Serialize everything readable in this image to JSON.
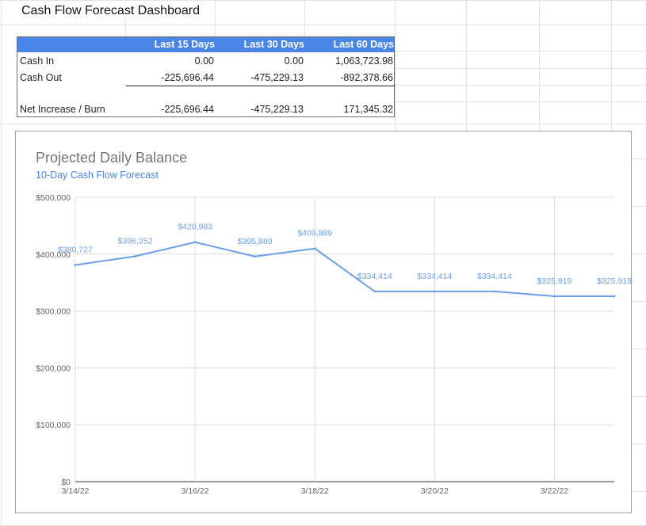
{
  "sheet": {
    "title": "Cash Flow Forecast Dashboard"
  },
  "summary_table": {
    "headers": [
      "",
      "Last 15 Days",
      "Last 30 Days",
      "Last 60 Days"
    ],
    "rows": [
      {
        "label": "Cash In",
        "values": [
          "0.00",
          "0.00",
          "1,063,723.98"
        ]
      },
      {
        "label": "Cash Out",
        "values": [
          "-225,696.44",
          "-475,229.13",
          "-892,378.66"
        ]
      },
      {
        "label": "Net Increase / Burn",
        "values": [
          "-225,696.44",
          "-475,229.13",
          "171,345.32"
        ]
      }
    ],
    "header_color": "#4a86e8"
  },
  "chart_data": {
    "type": "line",
    "title": "Projected Daily Balance",
    "subtitle": "10-Day Cash Flow Forecast",
    "x": [
      "3/14/22",
      "3/15/22",
      "3/16/22",
      "3/17/22",
      "3/18/22",
      "3/19/22",
      "3/20/22",
      "3/21/22",
      "3/22/22",
      "3/23/22"
    ],
    "x_tick_labels": [
      "3/14/22",
      "3/16/22",
      "3/18/22",
      "3/20/22",
      "3/22/22"
    ],
    "values": [
      380727,
      396252,
      420983,
      395889,
      409889,
      334414,
      334414,
      334414,
      325919,
      325919
    ],
    "data_labels": [
      "$380,727",
      "$396,252",
      "$420,983",
      "$395,889",
      "$409,889",
      "$334,414",
      "$334,414",
      "$334,414",
      "$325,919",
      "$325,919"
    ],
    "y_tick_values": [
      0,
      100000,
      200000,
      300000,
      400000,
      500000
    ],
    "y_tick_labels": [
      "$0",
      "$100,000",
      "$200,000",
      "$300,000",
      "$400,000",
      "$500,000"
    ],
    "ylim": [
      0,
      500000
    ],
    "grid": true,
    "legend": "none",
    "line_color": "#6d9eeb",
    "subtitle_color": "#4a86e8"
  }
}
